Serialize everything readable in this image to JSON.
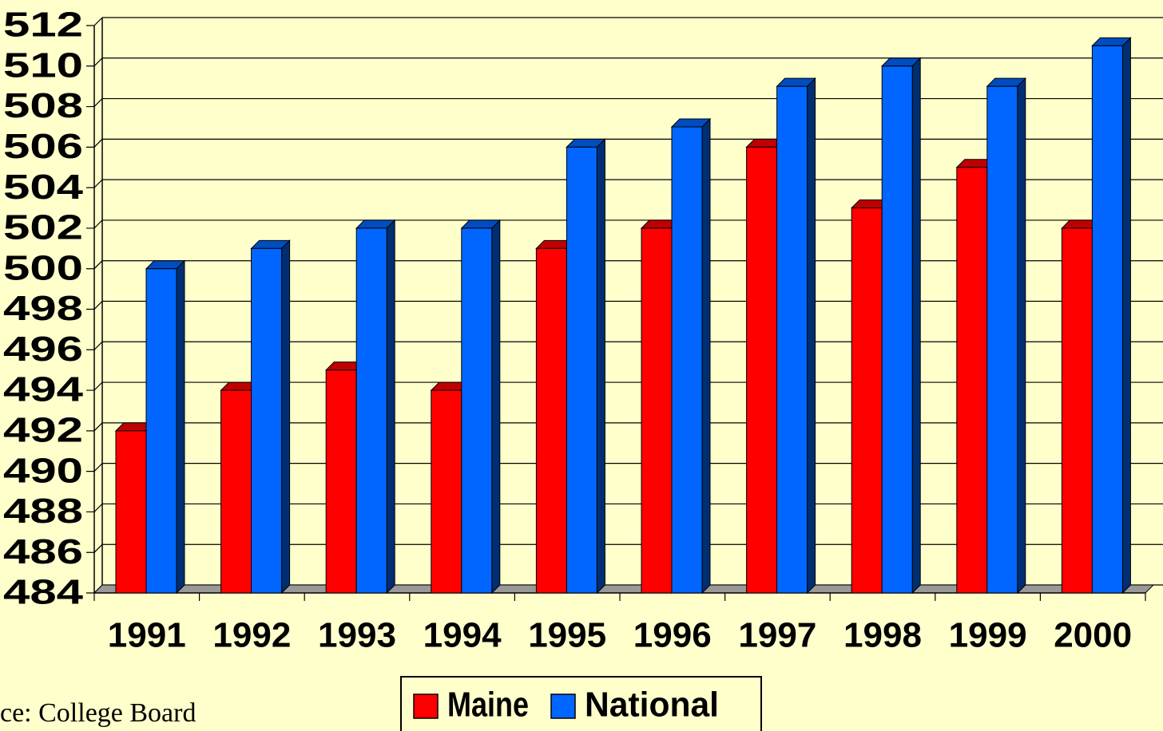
{
  "chart_data": {
    "type": "bar3d",
    "categories": [
      "1991",
      "1992",
      "1993",
      "1994",
      "1995",
      "1996",
      "1997",
      "1998",
      "1999",
      "2000"
    ],
    "series": [
      {
        "name": "Maine",
        "color": "#ff0000",
        "values": [
          492,
          494,
          495,
          494,
          501,
          502,
          506,
          503,
          505,
          502
        ]
      },
      {
        "name": "National",
        "color": "#0066ff",
        "values": [
          500,
          501,
          502,
          502,
          506,
          507,
          509,
          510,
          509,
          511
        ]
      }
    ],
    "ylim": [
      484,
      512
    ],
    "yticks": [
      484,
      486,
      488,
      490,
      492,
      494,
      496,
      498,
      500,
      502,
      504,
      506,
      508,
      510,
      512
    ],
    "grid": true,
    "legend": "bottom",
    "annotations": [
      "ce: College Board"
    ]
  }
}
